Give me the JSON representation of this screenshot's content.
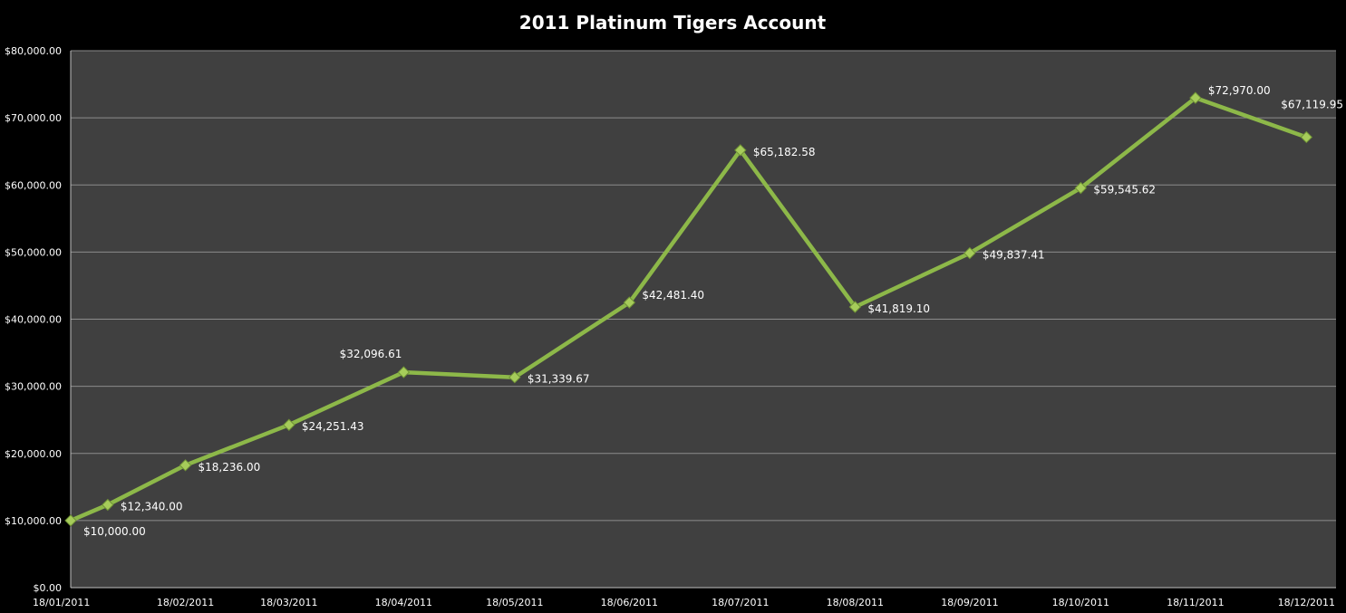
{
  "chart_data": {
    "type": "line",
    "title": "2011 Platinum Tigers Account",
    "xlabel": "",
    "ylabel": "",
    "ylim": [
      0,
      80000
    ],
    "y_ticks": [
      "$0.00",
      "$10,000.00",
      "$20,000.00",
      "$30,000.00",
      "$40,000.00",
      "$50,000.00",
      "$60,000.00",
      "$70,000.00",
      "$80,000.00"
    ],
    "x_ticks": [
      "18/01/2011",
      "18/02/2011",
      "18/03/2011",
      "18/04/2011",
      "18/05/2011",
      "18/06/2011",
      "18/07/2011",
      "18/08/2011",
      "18/09/2011",
      "18/10/2011",
      "18/11/2011",
      "18/12/2011"
    ],
    "grid": true,
    "legend": "none",
    "colors": {
      "background": "#000000",
      "plot_area": "#404040",
      "gridline": "#8c8c8c",
      "line": "#8db849",
      "marker": "#a6cc5a",
      "text": "#ffffff"
    },
    "series": [
      {
        "x": [
          "2011-01-18",
          "2011-01-28",
          "2011-02-18",
          "2011-03-18",
          "2011-04-18",
          "2011-05-18",
          "2011-06-18",
          "2011-07-18",
          "2011-08-18",
          "2011-09-18",
          "2011-10-18",
          "2011-11-18",
          "2011-12-18"
        ],
        "values": [
          10000.0,
          12340.0,
          18236.0,
          24251.43,
          32096.61,
          31339.67,
          42481.4,
          65182.58,
          41819.1,
          49837.41,
          59545.62,
          72970.0,
          67119.95
        ],
        "labels": [
          "$10,000.00",
          "$12,340.00",
          "$18,236.00",
          "$24,251.43",
          "$32,096.61",
          "$31,339.67",
          "$42,481.40",
          "$65,182.58",
          "$41,819.10",
          "$49,837.41",
          "$59,545.62",
          "$72,970.00",
          "$67,119.95"
        ]
      }
    ]
  }
}
